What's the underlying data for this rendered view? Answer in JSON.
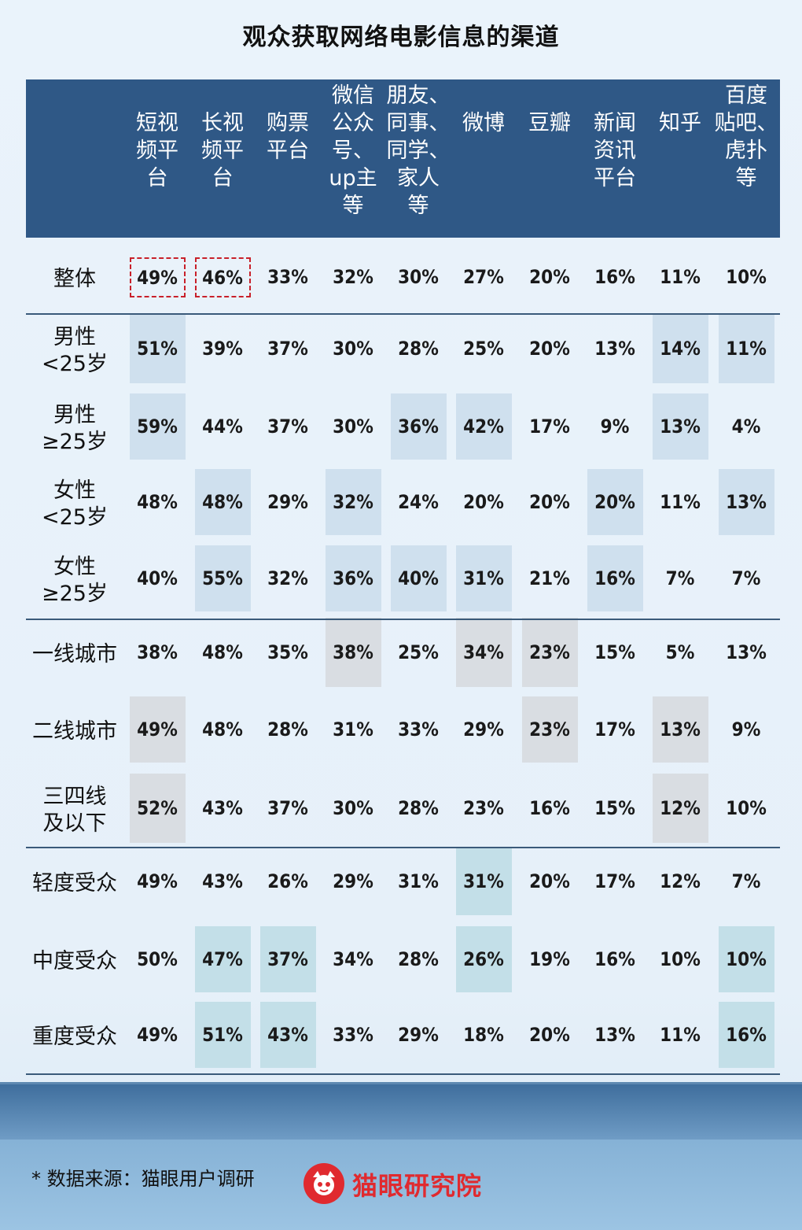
{
  "title": "观众获取网络电影信息的渠道",
  "source": "* 数据来源：猫眼用户调研",
  "logo_text": "猫眼研究院",
  "logo_icon": "cat-face-icon",
  "colors": {
    "header": "#2f5886",
    "highlight_blue": "#cfe0ee",
    "highlight_gray": "#d9dde2",
    "highlight_teal": "#c3dfe8",
    "dashed_border": "#c8202a",
    "logo": "#e02a2f"
  },
  "chart_data": {
    "type": "table",
    "title": "观众获取网络电影信息的渠道",
    "columns": [
      "短视\n频平\n台",
      "长视\n频平\n台",
      "购票\n平台",
      "微信\n公众\n号、\nup主\n等",
      "朋友、\n同事、\n同学、\n家人\n等",
      "微博",
      "豆瓣",
      "新闻\n资讯\n平台",
      "知乎",
      "百度\n贴吧、\n虎扑\n等"
    ],
    "rows": [
      {
        "label": "整体",
        "values": [
          "49%",
          "46%",
          "33%",
          "32%",
          "30%",
          "27%",
          "20%",
          "16%",
          "11%",
          "10%"
        ],
        "highlight": [
          "dash",
          "dash",
          "",
          "",
          "",
          "",
          "",
          "",
          "",
          ""
        ]
      },
      {
        "label": "男性\n<25岁",
        "values": [
          "51%",
          "39%",
          "37%",
          "30%",
          "28%",
          "25%",
          "20%",
          "13%",
          "14%",
          "11%"
        ],
        "highlight": [
          "blue",
          "",
          "",
          "",
          "",
          "",
          "",
          "",
          "blue",
          "blue"
        ]
      },
      {
        "label": "男性\n≥25岁",
        "values": [
          "59%",
          "44%",
          "37%",
          "30%",
          "36%",
          "42%",
          "17%",
          "9%",
          "13%",
          "4%"
        ],
        "highlight": [
          "blue",
          "",
          "",
          "",
          "blue",
          "blue",
          "",
          "",
          "blue",
          ""
        ]
      },
      {
        "label": "女性\n<25岁",
        "values": [
          "48%",
          "48%",
          "29%",
          "32%",
          "24%",
          "20%",
          "20%",
          "20%",
          "11%",
          "13%"
        ],
        "highlight": [
          "",
          "blue",
          "",
          "blue",
          "",
          "",
          "",
          "blue",
          "",
          "blue"
        ]
      },
      {
        "label": "女性\n≥25岁",
        "values": [
          "40%",
          "55%",
          "32%",
          "36%",
          "40%",
          "31%",
          "21%",
          "16%",
          "7%",
          "7%"
        ],
        "highlight": [
          "",
          "blue",
          "",
          "blue",
          "blue",
          "blue",
          "",
          "blue",
          "",
          ""
        ]
      },
      {
        "label": "一线城市",
        "values": [
          "38%",
          "48%",
          "35%",
          "38%",
          "25%",
          "34%",
          "23%",
          "15%",
          "5%",
          "13%"
        ],
        "highlight": [
          "",
          "",
          "",
          "gray",
          "",
          "gray",
          "gray",
          "",
          "",
          ""
        ]
      },
      {
        "label": "二线城市",
        "values": [
          "49%",
          "48%",
          "28%",
          "31%",
          "33%",
          "29%",
          "23%",
          "17%",
          "13%",
          "9%"
        ],
        "highlight": [
          "gray",
          "",
          "",
          "",
          "",
          "",
          "gray",
          "",
          "gray",
          ""
        ]
      },
      {
        "label": "三四线\n及以下",
        "values": [
          "52%",
          "43%",
          "37%",
          "30%",
          "28%",
          "23%",
          "16%",
          "15%",
          "12%",
          "10%"
        ],
        "highlight": [
          "gray",
          "",
          "",
          "",
          "",
          "",
          "",
          "",
          "gray",
          ""
        ]
      },
      {
        "label": "轻度受众",
        "values": [
          "49%",
          "43%",
          "26%",
          "29%",
          "31%",
          "31%",
          "20%",
          "17%",
          "12%",
          "7%"
        ],
        "highlight": [
          "",
          "",
          "",
          "",
          "",
          "teal",
          "",
          "",
          "",
          ""
        ]
      },
      {
        "label": "中度受众",
        "values": [
          "50%",
          "47%",
          "37%",
          "34%",
          "28%",
          "26%",
          "19%",
          "16%",
          "10%",
          "10%"
        ],
        "highlight": [
          "",
          "teal",
          "teal",
          "",
          "",
          "teal",
          "",
          "",
          "",
          "teal"
        ]
      },
      {
        "label": "重度受众",
        "values": [
          "49%",
          "51%",
          "43%",
          "33%",
          "29%",
          "18%",
          "20%",
          "13%",
          "11%",
          "16%"
        ],
        "highlight": [
          "",
          "teal",
          "teal",
          "",
          "",
          "",
          "",
          "",
          "",
          "teal"
        ]
      }
    ]
  }
}
